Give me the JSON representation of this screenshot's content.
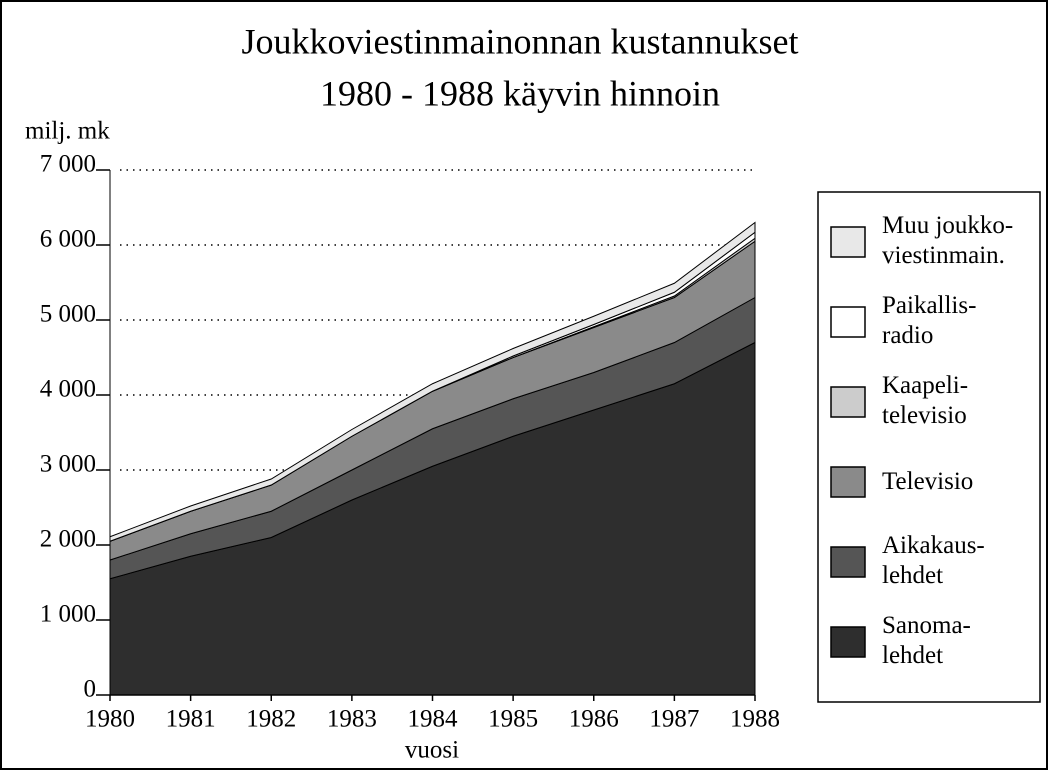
{
  "chart_data": {
    "type": "stacked_area",
    "title": "Joukkoviestinmainonnan kustannukset",
    "subtitle": "1980 - 1988 käyvin hinnoin",
    "y_label": "milj. mk",
    "x_label": "vuosi",
    "x": [
      1980,
      1981,
      1982,
      1983,
      1984,
      1985,
      1986,
      1987,
      1988
    ],
    "xlim": [
      1980,
      1988
    ],
    "xticks": [
      1980,
      1981,
      1982,
      1983,
      1984,
      1985,
      1986,
      1987,
      1988
    ],
    "ylim": [
      0,
      7000
    ],
    "yticks": [
      0,
      {
        "value": 1000,
        "label": "1 000"
      },
      {
        "value": 2000,
        "label": "2 000"
      },
      {
        "value": 3000,
        "label": "3 000"
      },
      {
        "value": 4000,
        "label": "4 000"
      },
      {
        "value": 5000,
        "label": "5 000"
      },
      {
        "value": 6000,
        "label": "6 000"
      },
      {
        "value": 7000,
        "label": "7 000"
      }
    ],
    "grid": true,
    "legend": "right",
    "series": [
      {
        "name": "Sanoma-\nlehdet",
        "color": "#2e2e2e",
        "values": [
          1550,
          1850,
          2100,
          2600,
          3050,
          3450,
          3800,
          4150,
          4700
        ]
      },
      {
        "name": "Aikakaus-\nlehdet",
        "color": "#555555",
        "values": [
          250,
          300,
          350,
          400,
          500,
          500,
          500,
          550,
          600
        ]
      },
      {
        "name": "Televisio",
        "color": "#8a8a8a",
        "values": [
          250,
          300,
          350,
          450,
          500,
          550,
          600,
          600,
          750
        ]
      },
      {
        "name": "Kaapeli-\ntelevisio",
        "color": "#cccccc",
        "values": [
          0,
          0,
          0,
          0,
          0,
          0,
          10,
          20,
          40
        ]
      },
      {
        "name": "Paikallis-\nradio",
        "color": "#ffffff",
        "values": [
          0,
          0,
          0,
          0,
          0,
          20,
          30,
          50,
          80
        ]
      },
      {
        "name": "Muu joukko-\nviestinmain.",
        "color": "#e8e8e8",
        "values": [
          60,
          70,
          80,
          90,
          100,
          100,
          110,
          120,
          130
        ]
      }
    ]
  }
}
